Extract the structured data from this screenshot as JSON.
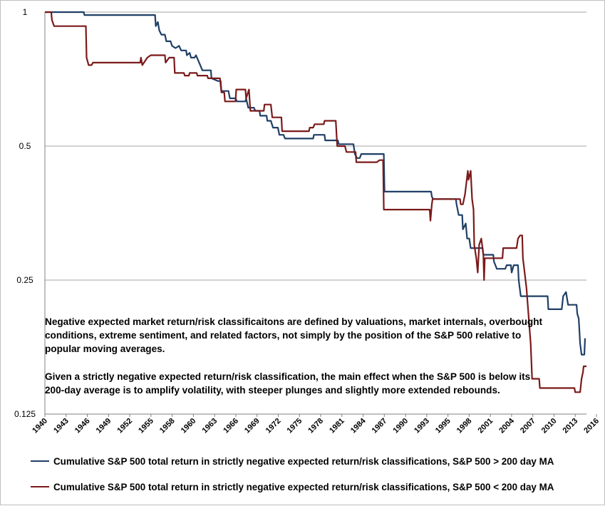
{
  "chart_data": {
    "type": "line",
    "y_scale": "log2",
    "ylim": [
      0.125,
      1
    ],
    "yticks": [
      {
        "value": 1,
        "label": "1"
      },
      {
        "value": 0.5,
        "label": "0.5"
      },
      {
        "value": 0.25,
        "label": "0.25"
      },
      {
        "value": 0.125,
        "label": "0.125"
      }
    ],
    "xlim": [
      1940,
      2016.7
    ],
    "xticks": [
      "1940",
      "1943",
      "1946",
      "1949",
      "1952",
      "1955",
      "1958",
      "1960",
      "1963",
      "1966",
      "1969",
      "1972",
      "1975",
      "1978",
      "1981",
      "1984",
      "1987",
      "1990",
      "1993",
      "1995",
      "1998",
      "2001",
      "2004",
      "2007",
      "2010",
      "2013",
      "2016"
    ],
    "grid": "horizontal",
    "series": [
      {
        "name": "Cumulative S&P 500 total return in strictly negative expected return/risk classifications, S&P 500 > 200 day MA",
        "color": "#1f3f66",
        "points": [
          [
            1940.0,
            1.0
          ],
          [
            1945.5,
            1.0
          ],
          [
            1945.6,
            0.985
          ],
          [
            1955.6,
            0.985
          ],
          [
            1955.7,
            0.93
          ],
          [
            1956.0,
            0.95
          ],
          [
            1956.2,
            0.91
          ],
          [
            1956.5,
            0.89
          ],
          [
            1957.0,
            0.89
          ],
          [
            1957.2,
            0.86
          ],
          [
            1957.8,
            0.86
          ],
          [
            1958.0,
            0.84
          ],
          [
            1958.5,
            0.83
          ],
          [
            1959.0,
            0.84
          ],
          [
            1959.3,
            0.82
          ],
          [
            1960.0,
            0.82
          ],
          [
            1960.1,
            0.8
          ],
          [
            1960.5,
            0.81
          ],
          [
            1960.7,
            0.79
          ],
          [
            1961.2,
            0.79
          ],
          [
            1961.4,
            0.8
          ],
          [
            1961.7,
            0.78
          ],
          [
            1962.0,
            0.76
          ],
          [
            1962.3,
            0.74
          ],
          [
            1963.5,
            0.74
          ],
          [
            1963.6,
            0.71
          ],
          [
            1964.5,
            0.7
          ],
          [
            1964.9,
            0.7
          ],
          [
            1965.0,
            0.665
          ],
          [
            1966.0,
            0.665
          ],
          [
            1966.2,
            0.64
          ],
          [
            1967.0,
            0.64
          ],
          [
            1967.2,
            0.63
          ],
          [
            1968.4,
            0.63
          ],
          [
            1968.5,
            0.64
          ],
          [
            1968.8,
            0.61
          ],
          [
            1969.6,
            0.61
          ],
          [
            1969.8,
            0.6
          ],
          [
            1970.4,
            0.6
          ],
          [
            1970.5,
            0.585
          ],
          [
            1971.4,
            0.585
          ],
          [
            1971.5,
            0.57
          ],
          [
            1972.0,
            0.57
          ],
          [
            1972.3,
            0.55
          ],
          [
            1973.0,
            0.55
          ],
          [
            1973.2,
            0.53
          ],
          [
            1973.8,
            0.53
          ],
          [
            1974.0,
            0.52
          ],
          [
            1978.0,
            0.52
          ],
          [
            1978.1,
            0.53
          ],
          [
            1979.6,
            0.53
          ],
          [
            1979.7,
            0.515
          ],
          [
            1981.5,
            0.515
          ],
          [
            1981.6,
            0.505
          ],
          [
            1983.7,
            0.505
          ],
          [
            1983.9,
            0.48
          ],
          [
            1984.2,
            0.47
          ],
          [
            1984.6,
            0.47
          ],
          [
            1984.8,
            0.48
          ],
          [
            1988.0,
            0.48
          ],
          [
            1988.1,
            0.395
          ],
          [
            1994.7,
            0.395
          ],
          [
            1994.8,
            0.385
          ],
          [
            1995.0,
            0.38
          ],
          [
            1998.2,
            0.38
          ],
          [
            1998.3,
            0.37
          ],
          [
            1998.6,
            0.35
          ],
          [
            1999.1,
            0.35
          ],
          [
            1999.2,
            0.325
          ],
          [
            1999.6,
            0.335
          ],
          [
            1999.8,
            0.31
          ],
          [
            2000.1,
            0.31
          ],
          [
            2000.3,
            0.295
          ],
          [
            2002.0,
            0.295
          ],
          [
            2002.1,
            0.285
          ],
          [
            2003.5,
            0.285
          ],
          [
            2003.6,
            0.275
          ],
          [
            2004.0,
            0.265
          ],
          [
            2005.2,
            0.265
          ],
          [
            2005.4,
            0.27
          ],
          [
            2006.0,
            0.27
          ],
          [
            2006.1,
            0.26
          ],
          [
            2006.4,
            0.27
          ],
          [
            2007.0,
            0.27
          ],
          [
            2007.1,
            0.25
          ],
          [
            2007.4,
            0.23
          ],
          [
            2007.5,
            0.23
          ],
          [
            2007.6,
            0.23
          ],
          [
            2011.2,
            0.23
          ],
          [
            2011.3,
            0.215
          ],
          [
            2013.2,
            0.215
          ],
          [
            2013.4,
            0.23
          ],
          [
            2013.8,
            0.235
          ],
          [
            2014.1,
            0.22
          ],
          [
            2015.3,
            0.22
          ],
          [
            2015.4,
            0.21
          ],
          [
            2015.6,
            0.205
          ],
          [
            2015.8,
            0.18
          ],
          [
            2016.0,
            0.17
          ],
          [
            2016.4,
            0.17
          ],
          [
            2016.5,
            0.185
          ]
        ]
      },
      {
        "name": "Cumulative S&P 500 total return in strictly negative expected return/risk classifications, S&P 500 < 200 day MA",
        "color": "#7b1a1a",
        "points": [
          [
            1940.0,
            1.0
          ],
          [
            1940.9,
            1.0
          ],
          [
            1941.0,
            0.96
          ],
          [
            1941.3,
            0.93
          ],
          [
            1945.8,
            0.93
          ],
          [
            1945.9,
            0.79
          ],
          [
            1946.2,
            0.76
          ],
          [
            1946.6,
            0.76
          ],
          [
            1946.8,
            0.77
          ],
          [
            1953.5,
            0.77
          ],
          [
            1953.6,
            0.79
          ],
          [
            1953.8,
            0.76
          ],
          [
            1954.5,
            0.79
          ],
          [
            1955.0,
            0.8
          ],
          [
            1957.0,
            0.8
          ],
          [
            1957.1,
            0.77
          ],
          [
            1957.6,
            0.79
          ],
          [
            1958.3,
            0.79
          ],
          [
            1958.4,
            0.73
          ],
          [
            1959.7,
            0.73
          ],
          [
            1959.8,
            0.72
          ],
          [
            1960.4,
            0.72
          ],
          [
            1960.5,
            0.73
          ],
          [
            1961.5,
            0.73
          ],
          [
            1961.6,
            0.72
          ],
          [
            1963.0,
            0.72
          ],
          [
            1963.1,
            0.71
          ],
          [
            1964.8,
            0.71
          ],
          [
            1965.0,
            0.66
          ],
          [
            1965.4,
            0.66
          ],
          [
            1965.5,
            0.63
          ],
          [
            1967.0,
            0.63
          ],
          [
            1967.1,
            0.67
          ],
          [
            1968.4,
            0.67
          ],
          [
            1968.5,
            0.64
          ],
          [
            1968.9,
            0.67
          ],
          [
            1969.1,
            0.6
          ],
          [
            1971.0,
            0.6
          ],
          [
            1971.1,
            0.62
          ],
          [
            1972.0,
            0.62
          ],
          [
            1972.2,
            0.58
          ],
          [
            1973.5,
            0.58
          ],
          [
            1973.6,
            0.54
          ],
          [
            1977.4,
            0.54
          ],
          [
            1977.5,
            0.55
          ],
          [
            1978.0,
            0.55
          ],
          [
            1978.2,
            0.56
          ],
          [
            1979.5,
            0.56
          ],
          [
            1979.6,
            0.57
          ],
          [
            1981.2,
            0.57
          ],
          [
            1981.4,
            0.5
          ],
          [
            1982.5,
            0.5
          ],
          [
            1982.7,
            0.485
          ],
          [
            1984.0,
            0.485
          ],
          [
            1984.1,
            0.46
          ],
          [
            1987.0,
            0.46
          ],
          [
            1987.4,
            0.465
          ],
          [
            1987.9,
            0.465
          ],
          [
            1988.0,
            0.36
          ],
          [
            1994.5,
            0.36
          ],
          [
            1994.6,
            0.34
          ],
          [
            1994.8,
            0.37
          ],
          [
            1994.9,
            0.38
          ],
          [
            1998.8,
            0.38
          ],
          [
            1998.9,
            0.37
          ],
          [
            1999.2,
            0.37
          ],
          [
            1999.5,
            0.39
          ],
          [
            1999.9,
            0.44
          ],
          [
            2000.0,
            0.42
          ],
          [
            2000.3,
            0.44
          ],
          [
            2000.5,
            0.38
          ],
          [
            2000.7,
            0.36
          ],
          [
            2000.8,
            0.3
          ],
          [
            2001.1,
            0.28
          ],
          [
            2001.3,
            0.26
          ],
          [
            2001.5,
            0.3
          ],
          [
            2001.8,
            0.31
          ],
          [
            2002.1,
            0.285
          ],
          [
            2002.2,
            0.25
          ],
          [
            2002.3,
            0.28
          ],
          [
            2004.8,
            0.28
          ],
          [
            2004.9,
            0.295
          ],
          [
            2006.8,
            0.295
          ],
          [
            2007.0,
            0.31
          ],
          [
            2007.3,
            0.315
          ],
          [
            2007.6,
            0.315
          ],
          [
            2007.7,
            0.28
          ],
          [
            2008.2,
            0.24
          ],
          [
            2008.8,
            0.18
          ],
          [
            2009.0,
            0.15
          ],
          [
            2009.5,
            0.15
          ],
          [
            2010.0,
            0.15
          ],
          [
            2010.1,
            0.143
          ],
          [
            2015.0,
            0.143
          ],
          [
            2015.1,
            0.14
          ],
          [
            2015.8,
            0.14
          ],
          [
            2016.0,
            0.15
          ],
          [
            2016.2,
            0.155
          ],
          [
            2016.3,
            0.16
          ],
          [
            2016.7,
            0.16
          ]
        ]
      }
    ]
  },
  "annotations": {
    "paragraph_1": "Negative expected market return/risk classificaitons are defined by valuations, market internals, overbought conditions, extreme sentiment, and related factors, not simply by the position of the S&P 500 relative to popular moving averages.",
    "paragraph_2": "Given a strictly negative expected return/risk classification, the main effect when the S&P 500 is below its 200-day average is to amplify volatility, with steeper plunges and slightly more extended rebounds."
  },
  "legend": {
    "items": [
      {
        "label": "Cumulative S&P 500 total return in strictly negative expected return/risk classifications, S&P 500 > 200 day MA",
        "color": "#1f3f66"
      },
      {
        "label": "Cumulative S&P 500 total return in strictly negative expected return/risk classifications, S&P 500 < 200 day MA",
        "color": "#7b1a1a"
      }
    ]
  }
}
